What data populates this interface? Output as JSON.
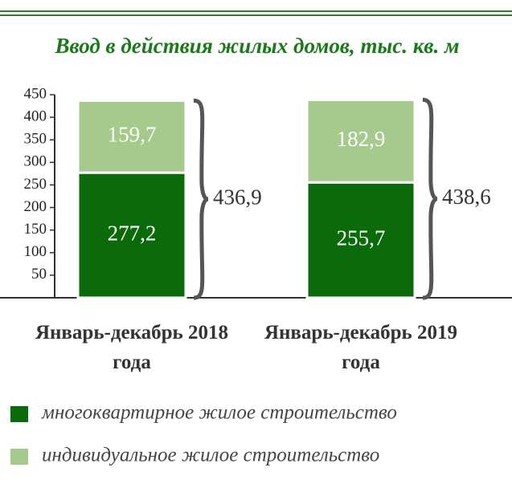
{
  "chart_data": {
    "type": "stacked_bar",
    "title": "Ввод в действия жилых домов, тыс. кв. м",
    "categories": [
      "Январь-декабрь 2018 года",
      "Январь-декабрь 2019 года"
    ],
    "series": [
      {
        "name": "многоквартирное жилое строительство",
        "color": "#0b6b0b",
        "values": [
          277.2,
          255.7
        ],
        "value_labels": [
          "277,2",
          "255,7"
        ]
      },
      {
        "name": "индивидуальное жилое строительство",
        "color": "#a6c98c",
        "values": [
          159.7,
          182.9
        ],
        "value_labels": [
          "159,7",
          "182,9"
        ]
      }
    ],
    "totals": [
      436.9,
      438.6
    ],
    "total_labels": [
      "436,9",
      "438,6"
    ],
    "ylim": [
      0,
      450
    ],
    "yticks": [
      50,
      100,
      150,
      200,
      250,
      300,
      350,
      400,
      450
    ]
  }
}
